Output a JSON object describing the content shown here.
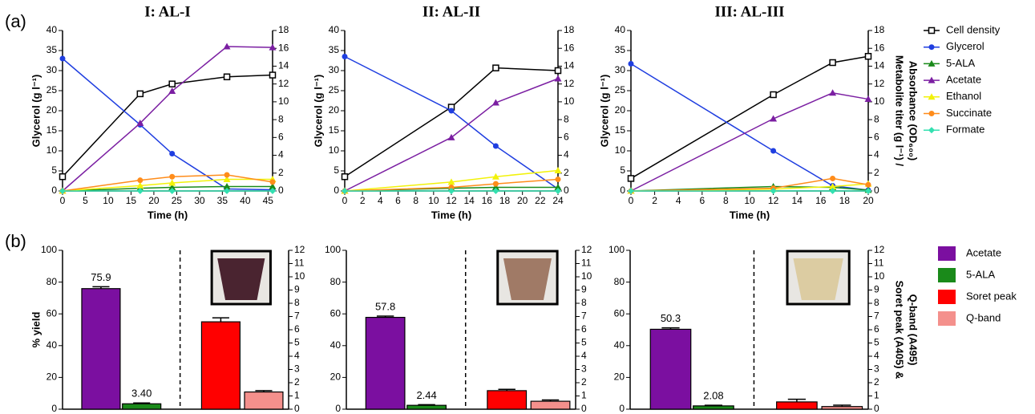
{
  "panel_labels": [
    "(a)",
    "(b)"
  ],
  "chart_data": [
    {
      "type": "line",
      "title": "I: AL-I",
      "xlabel": "Time (h)",
      "ylabel": "Glycerol (g l⁻¹)",
      "x": [
        0,
        17,
        24,
        36,
        46
      ],
      "xlim": [
        0,
        46
      ],
      "xticks": [
        0,
        5,
        10,
        15,
        20,
        25,
        30,
        35,
        40,
        45
      ],
      "ylim": [
        0,
        40
      ],
      "yticks": [
        0,
        5,
        10,
        15,
        20,
        25,
        30,
        35,
        40
      ],
      "y2lim": [
        0,
        18
      ],
      "y2ticks": [
        0,
        2,
        4,
        6,
        8,
        10,
        12,
        14,
        16,
        18
      ],
      "series": [
        {
          "color": "#000000",
          "marker": "square",
          "axis": "y2",
          "values": [
            1.6,
            10.9,
            12.0,
            12.8,
            13.0
          ]
        },
        {
          "color": "#1f3ee0",
          "marker": "circle",
          "values": [
            33,
            16.5,
            9.3,
            0.5,
            0.3
          ]
        },
        {
          "color": "#1a8a1a",
          "marker": "triangle",
          "axis": "y2",
          "values": [
            0,
            0.3,
            0.4,
            0.5,
            0.5
          ]
        },
        {
          "color": "#7b1fa2",
          "marker": "triangle",
          "axis": "y2",
          "values": [
            0,
            7.6,
            11.2,
            16.2,
            16.1
          ]
        },
        {
          "color": "#f2f20a",
          "marker": "triangle",
          "axis": "y2",
          "values": [
            0,
            0.6,
            0.9,
            1.3,
            1.3
          ]
        },
        {
          "color": "#ff8c1a",
          "marker": "circle",
          "axis": "y2",
          "values": [
            0,
            1.2,
            1.6,
            1.8,
            1.0
          ]
        },
        {
          "color": "#33e0b0",
          "marker": "diamond",
          "axis": "y2",
          "values": [
            0,
            0,
            0,
            0,
            0
          ]
        }
      ]
    },
    {
      "type": "line",
      "title": "II: AL-II",
      "xlabel": "Time (h)",
      "ylabel": "Glycerol (g l⁻¹)",
      "x": [
        0,
        12,
        17,
        24
      ],
      "xlim": [
        0,
        24
      ],
      "xticks": [
        0,
        2,
        4,
        6,
        8,
        10,
        12,
        14,
        16,
        18,
        20,
        22,
        24
      ],
      "ylim": [
        0,
        40
      ],
      "yticks": [
        0,
        5,
        10,
        15,
        20,
        25,
        30,
        35,
        40
      ],
      "y2lim": [
        0,
        18
      ],
      "y2ticks": [
        0,
        2,
        4,
        6,
        8,
        10,
        12,
        14,
        16,
        18
      ],
      "series": [
        {
          "color": "#000000",
          "marker": "square",
          "axis": "y2",
          "values": [
            1.6,
            9.4,
            13.8,
            13.5
          ]
        },
        {
          "color": "#1f3ee0",
          "marker": "circle",
          "values": [
            33.5,
            20,
            11.2,
            0.5
          ]
        },
        {
          "color": "#1a8a1a",
          "marker": "triangle",
          "axis": "y2",
          "values": [
            0,
            0.3,
            0.4,
            0.4
          ]
        },
        {
          "color": "#7b1fa2",
          "marker": "triangle",
          "axis": "y2",
          "values": [
            0,
            6.0,
            9.9,
            12.6
          ]
        },
        {
          "color": "#f2f20a",
          "marker": "triangle",
          "axis": "y2",
          "values": [
            0,
            1.0,
            1.6,
            2.3
          ]
        },
        {
          "color": "#ff8c1a",
          "marker": "circle",
          "axis": "y2",
          "values": [
            0,
            0.4,
            0.8,
            1.3
          ]
        },
        {
          "color": "#33e0b0",
          "marker": "diamond",
          "axis": "y2",
          "values": [
            0,
            0,
            0,
            0
          ]
        }
      ]
    },
    {
      "type": "line",
      "title": "III: AL-III",
      "xlabel": "Time (h)",
      "ylabel": "Glycerol (g l⁻¹)",
      "y2label": [
        "Metabolite titer (g l⁻¹) /",
        "Absorbance (OD₆₀₀)"
      ],
      "x": [
        0,
        12,
        17,
        20
      ],
      "xlim": [
        0,
        20
      ],
      "xticks": [
        0,
        2,
        4,
        6,
        8,
        10,
        12,
        14,
        16,
        18,
        20
      ],
      "ylim": [
        0,
        40
      ],
      "yticks": [
        0,
        5,
        10,
        15,
        20,
        25,
        30,
        35,
        40
      ],
      "y2lim": [
        0,
        18
      ],
      "y2ticks": [
        0,
        2,
        4,
        6,
        8,
        10,
        12,
        14,
        16,
        18
      ],
      "legend": "right",
      "series": [
        {
          "name": "Cell density",
          "color": "#000000",
          "marker": "square",
          "axis": "y2",
          "values": [
            1.4,
            10.8,
            14.4,
            15.1
          ]
        },
        {
          "name": "Glycerol",
          "color": "#1f3ee0",
          "marker": "circle",
          "values": [
            31.7,
            10,
            1.3,
            0.2
          ]
        },
        {
          "name": "5-ALA",
          "color": "#1a8a1a",
          "marker": "triangle",
          "axis": "y2",
          "values": [
            0,
            0.5,
            0.4,
            0.1
          ]
        },
        {
          "name": "Acetate",
          "color": "#7b1fa2",
          "marker": "triangle",
          "axis": "y2",
          "values": [
            0,
            8.1,
            11.0,
            10.3
          ]
        },
        {
          "name": "Ethanol",
          "color": "#f2f20a",
          "marker": "triangle",
          "axis": "y2",
          "values": [
            0,
            0.2,
            0.5,
            0.8
          ]
        },
        {
          "name": "Succinate",
          "color": "#ff8c1a",
          "marker": "circle",
          "axis": "y2",
          "values": [
            0,
            0.3,
            1.4,
            0.7
          ]
        },
        {
          "name": "Formate",
          "color": "#33e0b0",
          "marker": "diamond",
          "axis": "y2",
          "values": [
            0,
            0,
            0,
            0
          ]
        }
      ]
    },
    {
      "type": "bar",
      "ylabel": "% yield",
      "ylim": [
        0,
        100
      ],
      "yticks": [
        0,
        20,
        40,
        60,
        80,
        100
      ],
      "y2lim": [
        0,
        12
      ],
      "y2ticks": [
        0,
        1,
        2,
        3,
        4,
        5,
        6,
        7,
        8,
        9,
        10,
        11,
        12
      ],
      "series": [
        {
          "color": "#7b0fa0",
          "values": [
            75.9
          ],
          "errors": [
            1.2
          ],
          "show_labels": true
        },
        {
          "color": "#1a8a1a",
          "values": [
            3.4
          ],
          "value_labels": [
            "3.40"
          ],
          "errors": [
            0.5
          ],
          "show_labels": true
        },
        {
          "color": "#ff0000",
          "axis": "y2",
          "values": [
            6.6
          ],
          "errors": [
            0.3
          ]
        },
        {
          "color": "#f4908c",
          "axis": "y2",
          "values": [
            1.3
          ],
          "errors": [
            0.1
          ]
        }
      ]
    },
    {
      "type": "bar",
      "ylim": [
        0,
        100
      ],
      "yticks": [
        0,
        20,
        40,
        60,
        80,
        100
      ],
      "y2lim": [
        0,
        12
      ],
      "y2ticks": [
        0,
        1,
        2,
        3,
        4,
        5,
        6,
        7,
        8,
        9,
        10,
        11,
        12
      ],
      "series": [
        {
          "color": "#7b0fa0",
          "values": [
            57.8
          ],
          "errors": [
            0.8
          ],
          "show_labels": true
        },
        {
          "color": "#1a8a1a",
          "values": [
            2.44
          ],
          "errors": [
            0.4
          ],
          "show_labels": true
        },
        {
          "color": "#ff0000",
          "axis": "y2",
          "values": [
            1.4
          ],
          "errors": [
            0.1
          ]
        },
        {
          "color": "#f4908c",
          "axis": "y2",
          "values": [
            0.6
          ],
          "errors": [
            0.1
          ]
        }
      ]
    },
    {
      "type": "bar",
      "y2label": [
        "Soret peak (A405) &",
        "Q-band (A495)"
      ],
      "ylim": [
        0,
        100
      ],
      "yticks": [
        0,
        20,
        40,
        60,
        80,
        100
      ],
      "y2lim": [
        0,
        12
      ],
      "y2ticks": [
        0,
        1,
        2,
        3,
        4,
        5,
        6,
        7,
        8,
        9,
        10,
        11,
        12
      ],
      "legend": "right",
      "series": [
        {
          "name": "Acetate",
          "color": "#7b0fa0",
          "values": [
            50.3
          ],
          "errors": [
            0.9
          ],
          "show_labels": true
        },
        {
          "name": "5-ALA",
          "color": "#1a8a1a",
          "values": [
            2.08
          ],
          "errors": [
            0.4
          ],
          "show_labels": true
        },
        {
          "name": "Soret peak",
          "color": "#ff0000",
          "axis": "y2",
          "values": [
            0.55
          ],
          "errors": [
            0.2
          ]
        },
        {
          "name": "Q-band",
          "color": "#f4908c",
          "axis": "y2",
          "values": [
            0.2
          ],
          "errors": [
            0.1
          ]
        }
      ]
    }
  ]
}
